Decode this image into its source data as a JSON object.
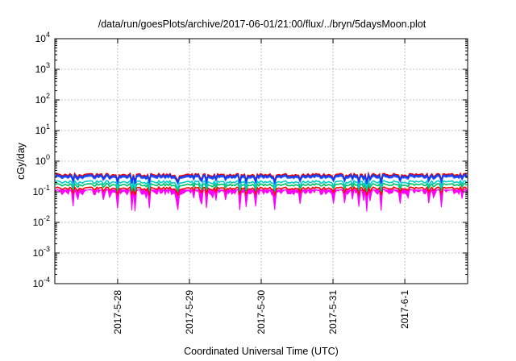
{
  "chart_data": {
    "type": "line",
    "title": "/data/run/goesPlots/archive/2017-06-01/21:00/flux/../bryn/5daysMoon.plot",
    "xlabel": "Coordinated Universal Time (UTC)",
    "ylabel": "cGy/day",
    "yscale": "log",
    "ylim": [
      0.0001,
      10000
    ],
    "xlim": [
      "2017-05-27 03:00",
      "2017-06-01 21:00"
    ],
    "grid": true,
    "legend": "none",
    "xticks": [
      {
        "date": "2017-05-28 00:00",
        "label": "2017-5-28"
      },
      {
        "date": "2017-05-29 00:00",
        "label": "2017-5-29"
      },
      {
        "date": "2017-05-30 00:00",
        "label": "2017-5-30"
      },
      {
        "date": "2017-05-31 00:00",
        "label": "2017-5-31"
      },
      {
        "date": "2017-06-01 00:00",
        "label": "2017-6-1"
      }
    ],
    "yticks": [
      {
        "value": 0.0001,
        "base": "10",
        "exp": "-4"
      },
      {
        "value": 0.001,
        "base": "10",
        "exp": "-3"
      },
      {
        "value": 0.01,
        "base": "10",
        "exp": "-2"
      },
      {
        "value": 0.1,
        "base": "10",
        "exp": "-1"
      },
      {
        "value": 1,
        "base": "10",
        "exp": "0"
      },
      {
        "value": 10,
        "base": "10",
        "exp": "1"
      },
      {
        "value": 100,
        "base": "10",
        "exp": "2"
      },
      {
        "value": 1000,
        "base": "10",
        "exp": "3"
      },
      {
        "value": 10000,
        "base": "10",
        "exp": "4"
      }
    ],
    "series": [
      {
        "color": "#ff00ff",
        "level": 0.1,
        "style": "filled-dips"
      },
      {
        "color": "#ff0000",
        "level": 0.13,
        "style": "line"
      },
      {
        "color": "#00c060",
        "level": 0.17,
        "style": "line"
      },
      {
        "color": "#00cccc",
        "level": 0.21,
        "style": "line"
      },
      {
        "color": "#3050ff",
        "level": 0.3,
        "style": "line"
      },
      {
        "color": "#ff0000",
        "level": 0.36,
        "style": "line"
      },
      {
        "color": "#0040ff",
        "level": 0.33,
        "style": "line"
      }
    ]
  }
}
